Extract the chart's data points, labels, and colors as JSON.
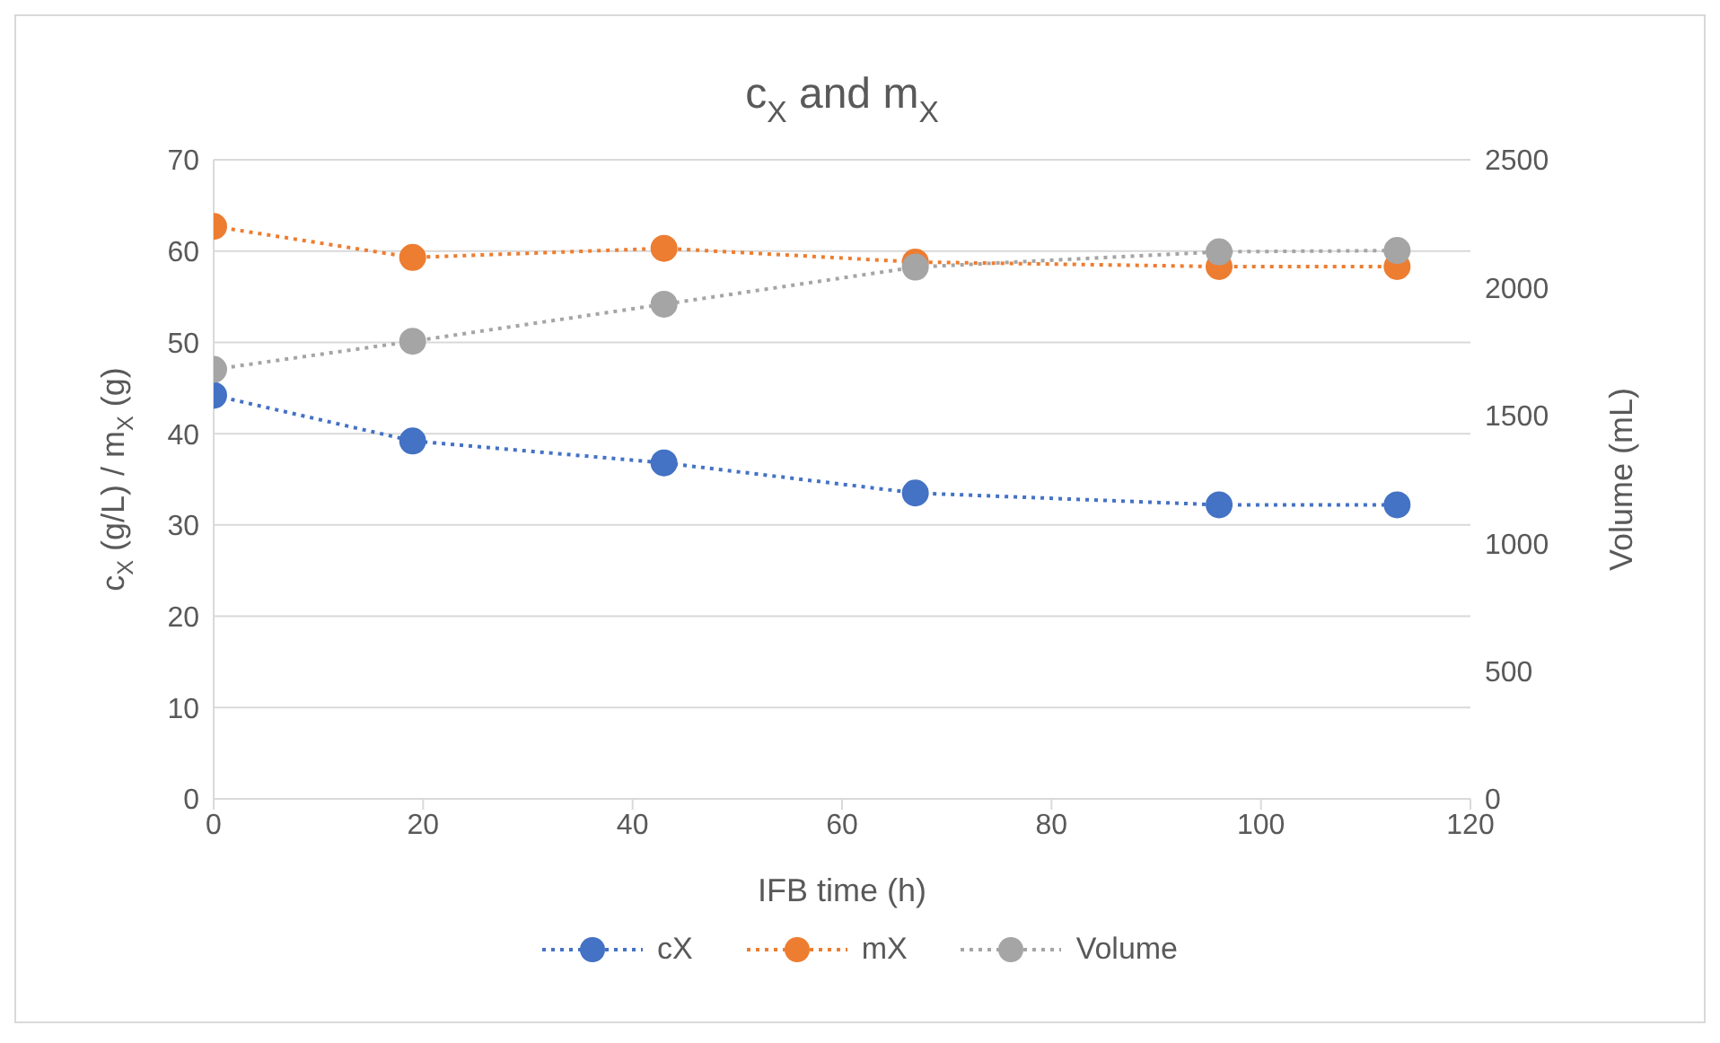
{
  "chart_data": {
    "type": "line",
    "title": "c$_{X}$ and m$_{X}$",
    "xlabel": "IFB time (h)",
    "ylabel": "c$_{X}$ (g/L) / m$_{X}$ (g)",
    "y2label": "Volume (mL)",
    "x": [
      0,
      19,
      43,
      67,
      96,
      113
    ],
    "series": [
      {
        "name": "cX",
        "color": "#4472c4",
        "values": [
          44.2,
          39.2,
          36.8,
          33.5,
          32.2,
          32.2
        ]
      },
      {
        "name": "mX",
        "color": "#ed7d31",
        "values": [
          62.7,
          59.3,
          60.3,
          58.8,
          58.3,
          58.3
        ]
      },
      {
        "name": "Volume",
        "color": "#a5a5a5",
        "axis": "y2",
        "values": [
          1680,
          1790,
          1935,
          2080,
          2140,
          2145
        ]
      }
    ],
    "xlim": [
      0,
      120
    ],
    "xticks": [
      0,
      20,
      40,
      60,
      80,
      100,
      120
    ],
    "ylim": [
      0,
      70
    ],
    "yticks": [
      0,
      10,
      20,
      30,
      40,
      50,
      60,
      70
    ],
    "y2lim": [
      0,
      2500
    ],
    "y2ticks": [
      0,
      500,
      1000,
      1500,
      2000,
      2500
    ],
    "grid": "y",
    "legend": "bottom",
    "marker": "circle",
    "line_style": "dotted"
  }
}
